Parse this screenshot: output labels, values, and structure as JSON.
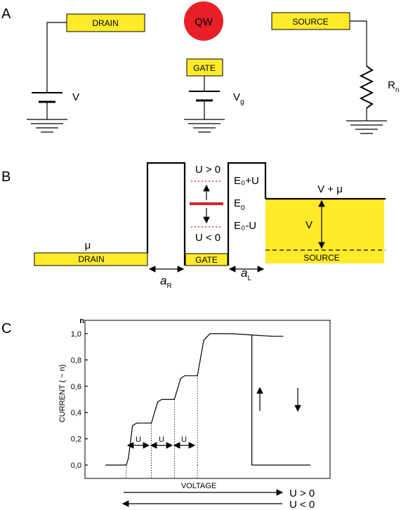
{
  "panel_a": {
    "letter": "A",
    "qw_label": "QW",
    "drain_label": "DRAIN",
    "source_label": "SOURCE",
    "gate_label": "GATE",
    "v_label": "V",
    "vg_main": "V",
    "vg_sub": "g",
    "rn_main": "R",
    "rn_sub": "n",
    "colors": {
      "box": "#ffeb2a",
      "qw": "#e81f27"
    }
  },
  "panel_b": {
    "letter": "B",
    "u_pos": "U > 0",
    "u_neg": "U < 0",
    "e0_plus": "E₀+U",
    "e0_main": "E",
    "e0_sub": "0",
    "e0_minus": "E₀-U",
    "mu": "μ",
    "v_plus_mu": "V + μ",
    "v": "V",
    "drain": "DRAIN",
    "gate": "GATE",
    "source": "SOURCE",
    "ar_main": "a",
    "ar_sub": "R",
    "al_main": "a",
    "al_sub": "L",
    "colors": {
      "level": "#d7232a",
      "dotted": "#e8312f",
      "fill": "#ffeb2a"
    }
  },
  "panel_c": {
    "letter": "C",
    "ylabel": "CURRENT ( ~ n)",
    "n_label": "n",
    "xlabel": "VOLTAGE",
    "step_label": "U",
    "sweep_up": "U > 0",
    "sweep_down": "U < 0"
  },
  "chart_data": {
    "type": "line",
    "title": "",
    "xlabel": "VOLTAGE",
    "ylabel": "CURRENT ( ~ n)",
    "yticks": [
      "0,0",
      "0,2",
      "0,4",
      "0,6",
      "0,8",
      "1,0"
    ],
    "ylim": [
      0,
      1.0
    ],
    "grid": false,
    "series": [
      {
        "x": [
          0,
          0.1,
          0.11,
          0.13,
          0.15,
          0.22,
          0.25,
          0.27,
          0.33,
          0.36,
          0.38,
          0.44,
          0.47,
          0.5,
          0.53,
          0.6,
          0.7,
          0.8,
          0.85
        ],
        "y": [
          0.0,
          0.0,
          0.05,
          0.3,
          0.32,
          0.32,
          0.48,
          0.5,
          0.5,
          0.66,
          0.68,
          0.68,
          0.95,
          1.0,
          1.0,
          1.0,
          0.99,
          0.98,
          0.98
        ]
      },
      {
        "x": [
          0.7,
          0.7,
          0.85,
          0.86,
          0.98
        ],
        "y": [
          0.99,
          0.0,
          0.0,
          0.0,
          0.0
        ]
      }
    ]
  }
}
